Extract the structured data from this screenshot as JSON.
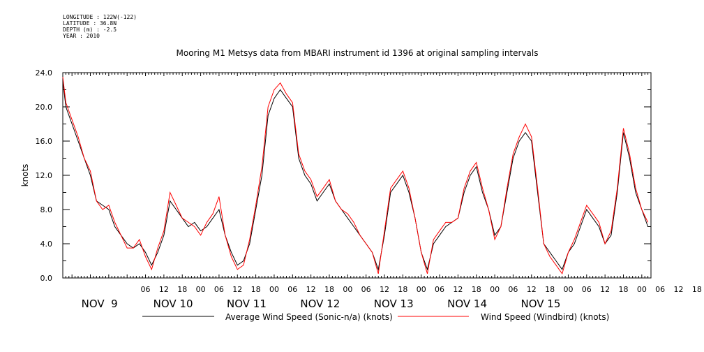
{
  "metadata": {
    "longitude": "LONGITUDE : 122W(-122)",
    "latitude": "LATITUDE : 36.8N",
    "depth": "DEPTH (m) : -2.5",
    "year": "YEAR : 2010"
  },
  "colors": {
    "series1": "#000000",
    "series2": "#ff0000",
    "axis": "#000000"
  },
  "chart_data": {
    "type": "line",
    "title": "Mooring M1 Metsys data from MBARI instrument id 1396 at original sampling intervals",
    "ylabel": "knots",
    "xlabel": "",
    "ylim": [
      0,
      24
    ],
    "yticks": [
      "0.0",
      "4.0",
      "8.0",
      "12.0",
      "16.0",
      "20.0",
      "24.0"
    ],
    "xlim_hours": [
      -21,
      171
    ],
    "x_unit": "hours after 2010-11-09 00:00",
    "hour_ticks": [
      "06",
      "12",
      "18",
      "00",
      "06",
      "12",
      "18",
      "00",
      "06",
      "12",
      "18",
      "00",
      "06",
      "12",
      "18",
      "00",
      "06",
      "12",
      "18",
      "00",
      "06",
      "12",
      "18",
      "00",
      "06",
      "12",
      "18",
      "00",
      "06",
      "12",
      "18",
      "00"
    ],
    "day_labels": [
      "NOV  9",
      "NOV 10",
      "NOV 11",
      "NOV 12",
      "NOV 13",
      "NOV 14",
      "NOV 15"
    ],
    "grid": false,
    "legend_position": "bottom",
    "series": [
      {
        "name": "Average Wind Speed (Sonic-n/a) (knots)",
        "x": [
          -21,
          -20,
          -18,
          -16,
          -14,
          -12,
          -10,
          -8,
          -6,
          -4,
          -2,
          0,
          2,
          4,
          6,
          8,
          10,
          12,
          14,
          16,
          18,
          20,
          22,
          24,
          26,
          28,
          30,
          32,
          34,
          36,
          38,
          40,
          42,
          44,
          46,
          48,
          50,
          52,
          54,
          56,
          58,
          60,
          62,
          64,
          66,
          68,
          70,
          72,
          74,
          76,
          78,
          80,
          82,
          84,
          86,
          88,
          90,
          92,
          94,
          96,
          98,
          100,
          102,
          104,
          106,
          108,
          110,
          112,
          114,
          116,
          118,
          120,
          122,
          124,
          126,
          128,
          130,
          132,
          134,
          136,
          138,
          140,
          142,
          144,
          146,
          148,
          150,
          152,
          154,
          156,
          158,
          160,
          162,
          164,
          166,
          168,
          170
        ],
        "values": [
          23,
          20,
          18,
          16,
          14,
          12,
          9,
          8.5,
          8,
          6,
          5,
          4,
          3.5,
          4,
          3,
          1.5,
          3,
          5,
          9,
          8,
          7,
          6,
          6.5,
          5.5,
          6,
          7,
          8,
          5,
          3,
          1.5,
          2,
          4,
          8,
          12,
          19,
          21,
          22,
          21,
          20,
          14,
          12,
          11,
          9,
          10,
          11,
          9,
          8,
          7,
          6,
          5,
          4,
          3,
          1,
          5,
          10,
          11,
          12,
          10,
          7,
          3,
          1,
          4,
          5,
          6,
          6.5,
          7,
          10,
          12,
          13,
          10,
          8,
          5,
          6,
          10,
          14,
          16,
          17,
          16,
          10,
          4,
          3,
          2,
          1,
          3,
          4,
          6,
          8,
          7,
          6,
          4,
          5,
          10,
          17,
          14,
          10,
          8,
          6
        ]
      },
      {
        "name": "Wind Speed (Windbird) (knots)",
        "x": [
          -21,
          -20,
          -18,
          -16,
          -14,
          -12,
          -10,
          -8,
          -6,
          -4,
          -2,
          0,
          2,
          4,
          6,
          8,
          10,
          12,
          14,
          16,
          18,
          20,
          22,
          24,
          26,
          28,
          30,
          32,
          34,
          36,
          38,
          40,
          42,
          44,
          46,
          48,
          50,
          52,
          54,
          56,
          58,
          60,
          62,
          64,
          66,
          68,
          70,
          72,
          74,
          76,
          78,
          80,
          82,
          84,
          86,
          88,
          90,
          92,
          94,
          96,
          98,
          100,
          102,
          104,
          106,
          108,
          110,
          112,
          114,
          116,
          118,
          120,
          122,
          124,
          126,
          128,
          130,
          132,
          134,
          136,
          138,
          140,
          142,
          144,
          146,
          148,
          150,
          152,
          154,
          156,
          158,
          160,
          162,
          164,
          166,
          168,
          170
        ],
        "values": [
          23.5,
          20.5,
          18.5,
          16.5,
          14,
          12.5,
          9,
          8,
          8.5,
          6.5,
          5,
          3.5,
          3.5,
          4.5,
          2.5,
          1,
          3.5,
          5.5,
          10,
          8.5,
          7,
          6.5,
          6,
          5,
          6.5,
          7.5,
          9.5,
          5,
          2.5,
          1,
          1.5,
          4.5,
          8.5,
          13,
          20,
          22,
          22.8,
          21.5,
          20.5,
          14.5,
          12.5,
          11.5,
          9.5,
          10.5,
          11.5,
          9,
          8,
          7.5,
          6.5,
          5,
          4,
          3,
          0.5,
          5.5,
          10.5,
          11.5,
          12.5,
          10.5,
          7,
          3,
          0.5,
          4.5,
          5.5,
          6.5,
          6.5,
          7,
          10.5,
          12.5,
          13.5,
          10.5,
          8,
          4.5,
          6,
          10.5,
          14.5,
          16.5,
          18,
          16.5,
          10.5,
          4,
          2.5,
          1.5,
          0.5,
          3,
          4.5,
          6.5,
          8.5,
          7.5,
          6.5,
          4,
          5.5,
          10.5,
          17.5,
          14.5,
          10.5,
          8,
          6.5
        ]
      }
    ]
  }
}
